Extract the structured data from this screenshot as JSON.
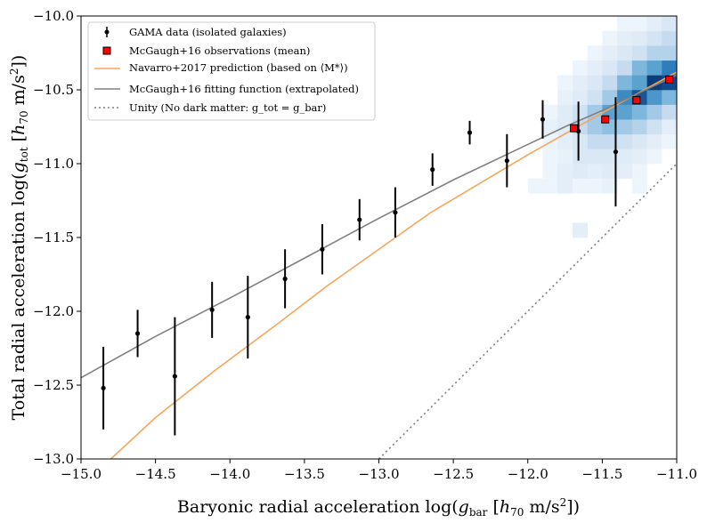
{
  "chart_data": {
    "type": "scatter",
    "xlabel": "Baryonic radial acceleration log(g_bar [h_70 m/s^2])",
    "ylabel": "Total radial acceleration log(g_tot [h_70 m/s^2])",
    "xlim": [
      -15.0,
      -11.0
    ],
    "ylim": [
      -13.0,
      -10.0
    ],
    "xticks": [
      -15.0,
      -14.5,
      -14.0,
      -13.5,
      -13.0,
      -12.5,
      -12.0,
      -11.5,
      -11.0
    ],
    "yticks": [
      -13.0,
      -12.5,
      -12.0,
      -11.5,
      -11.0,
      -10.5,
      -10.0
    ],
    "xtick_labels": [
      "−15.0",
      "−14.5",
      "−14.0",
      "−13.5",
      "−13.0",
      "−12.5",
      "−12.0",
      "−11.5",
      "−11.0"
    ],
    "ytick_labels": [
      "−13.0",
      "−12.5",
      "−12.0",
      "−11.5",
      "−11.0",
      "−10.5",
      "−10.0"
    ],
    "grid": false,
    "legend_position": "top-left",
    "legend": [
      "GAMA data (isolated galaxies)",
      "McGaugh+16 observations (mean)",
      "Navarro+2017 prediction (based on ⟨M*⟩)",
      "McGaugh+16 fitting function (extrapolated)",
      "Unity (No dark matter: g_tot = g_bar)"
    ],
    "colors": {
      "gama": "#000000",
      "mcgaugh_obs_fill": "#ff0000",
      "mcgaugh_obs_edge": "#000000",
      "navarro": "#f5a65b",
      "mcgaugh_fit": "#808080",
      "unity": "#808080"
    },
    "series": [
      {
        "name": "GAMA data (isolated galaxies)",
        "kind": "errorbar",
        "x": [
          -14.85,
          -14.62,
          -14.37,
          -14.12,
          -13.88,
          -13.63,
          -13.38,
          -13.13,
          -12.89,
          -12.64,
          -12.39,
          -12.14,
          -11.9,
          -11.66,
          -11.41
        ],
        "y": [
          -12.52,
          -12.15,
          -12.44,
          -11.99,
          -12.04,
          -11.78,
          -11.58,
          -11.38,
          -11.33,
          -11.04,
          -10.79,
          -10.98,
          -10.7,
          -10.78,
          -10.92
        ],
        "yerr": [
          0.28,
          0.16,
          0.4,
          0.19,
          0.28,
          0.2,
          0.17,
          0.14,
          0.17,
          0.11,
          0.08,
          0.18,
          0.13,
          0.2,
          0.37
        ]
      },
      {
        "name": "McGaugh+16 observations (mean)",
        "kind": "marker",
        "x": [
          -11.69,
          -11.48,
          -11.27,
          -11.05
        ],
        "y": [
          -10.76,
          -10.7,
          -10.57,
          -10.43
        ]
      },
      {
        "name": "Navarro+2017 prediction (based on ⟨M*⟩)",
        "kind": "line",
        "x": [
          -14.8,
          -14.5,
          -14.1,
          -13.7,
          -13.35,
          -13.0,
          -12.65,
          -12.3,
          -12.0,
          -11.7,
          -11.4,
          -11.0
        ],
        "y": [
          -13.0,
          -12.72,
          -12.4,
          -12.1,
          -11.83,
          -11.58,
          -11.33,
          -11.12,
          -10.94,
          -10.77,
          -10.6,
          -10.38
        ]
      },
      {
        "name": "McGaugh+16 fitting function (extrapolated)",
        "kind": "line",
        "x": [
          -15.0,
          -14.5,
          -14.0,
          -13.5,
          -13.0,
          -12.5,
          -12.0,
          -11.75,
          -11.5,
          -11.25,
          -11.0
        ],
        "y": [
          -12.45,
          -12.17,
          -11.91,
          -11.64,
          -11.37,
          -11.11,
          -10.87,
          -10.75,
          -10.64,
          -10.52,
          -10.4
        ]
      },
      {
        "name": "Unity (No dark matter: g_tot = g_bar)",
        "kind": "line",
        "x": [
          -13.0,
          -11.0
        ],
        "y": [
          -13.0,
          -11.0
        ]
      }
    ],
    "density_background": {
      "x_edges": [
        -12.0,
        -11.9,
        -11.8,
        -11.7,
        -11.6,
        -11.5,
        -11.4,
        -11.3,
        -11.2,
        -11.1,
        -11.0
      ],
      "y_edges": [
        -11.5,
        -11.4,
        -11.3,
        -11.2,
        -11.1,
        -11.0,
        -10.9,
        -10.8,
        -10.7,
        -10.6,
        -10.5,
        -10.4,
        -10.3,
        -10.2,
        -10.1,
        -10.0
      ],
      "counts": [
        [
          0,
          0,
          0,
          0.1,
          0,
          0,
          0,
          0,
          0,
          0
        ],
        [
          0,
          0,
          0,
          0,
          0,
          0,
          0,
          0,
          0,
          0
        ],
        [
          0,
          0,
          0,
          0,
          0,
          0,
          0,
          0,
          0,
          0
        ],
        [
          0.05,
          0.05,
          0.1,
          0.05,
          0.05,
          0.08,
          0,
          0.05,
          0,
          0
        ],
        [
          0,
          0.05,
          0.1,
          0.12,
          0.1,
          0.12,
          0.1,
          0.05,
          0,
          0
        ],
        [
          0,
          0.05,
          0.08,
          0.15,
          0.15,
          0.15,
          0.12,
          0.1,
          0.05,
          0
        ],
        [
          0,
          0.05,
          0.1,
          0.15,
          0.25,
          0.25,
          0.2,
          0.15,
          0.1,
          0.05
        ],
        [
          0,
          0.08,
          0.12,
          0.25,
          0.35,
          0.4,
          0.35,
          0.3,
          0.2,
          0.1
        ],
        [
          0,
          0.05,
          0.12,
          0.2,
          0.35,
          0.55,
          0.55,
          0.45,
          0.35,
          0.25
        ],
        [
          0,
          0,
          0.08,
          0.12,
          0.2,
          0.35,
          0.65,
          0.85,
          0.6,
          0.45
        ],
        [
          0,
          0,
          0.05,
          0.1,
          0.15,
          0.25,
          0.45,
          0.55,
          0.95,
          0.9
        ],
        [
          0,
          0,
          0,
          0.05,
          0.1,
          0.15,
          0.25,
          0.45,
          0.55,
          0.7
        ],
        [
          0,
          0,
          0,
          0,
          0.05,
          0.1,
          0.15,
          0.2,
          0.3,
          0.3
        ],
        [
          0,
          0,
          0,
          0,
          0,
          0.05,
          0.1,
          0.12,
          0.18,
          0.25
        ],
        [
          0,
          0,
          0,
          0,
          0,
          0,
          0.05,
          0.05,
          0.1,
          0.15
        ]
      ]
    }
  }
}
